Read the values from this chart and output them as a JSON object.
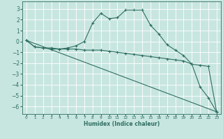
{
  "xlabel": "Humidex (Indice chaleur)",
  "bg_color": "#c8e6e0",
  "grid_color": "#ffffff",
  "line_color": "#2e6e62",
  "xlim": [
    -0.5,
    23.5
  ],
  "ylim": [
    -6.7,
    3.7
  ],
  "yticks": [
    3,
    2,
    1,
    0,
    -1,
    -2,
    -3,
    -4,
    -5,
    -6
  ],
  "xticks": [
    0,
    1,
    2,
    3,
    4,
    5,
    6,
    7,
    8,
    9,
    10,
    11,
    12,
    13,
    14,
    15,
    16,
    17,
    18,
    19,
    20,
    21,
    22,
    23
  ],
  "line1_x": [
    0,
    1,
    2,
    3,
    4,
    5,
    6,
    7,
    8,
    9,
    10,
    11,
    12,
    13,
    14,
    15,
    16,
    17,
    18,
    19,
    20,
    21,
    22,
    23
  ],
  "line1_y": [
    0.1,
    -0.5,
    -0.6,
    -0.7,
    -0.7,
    -0.6,
    -0.4,
    0.0,
    1.7,
    2.6,
    2.1,
    2.2,
    2.9,
    2.9,
    2.9,
    1.5,
    0.7,
    -0.3,
    -0.8,
    -1.3,
    -2.1,
    -4.2,
    -5.2,
    -6.5
  ],
  "line2_x": [
    0,
    1,
    2,
    3,
    4,
    5,
    6,
    7,
    8,
    9,
    10,
    11,
    12,
    13,
    14,
    15,
    16,
    17,
    18,
    19,
    20,
    21,
    22,
    23
  ],
  "line2_y": [
    0.1,
    -0.5,
    -0.6,
    -0.6,
    -0.7,
    -0.7,
    -0.7,
    -0.8,
    -0.8,
    -0.8,
    -0.9,
    -1.0,
    -1.1,
    -1.2,
    -1.3,
    -1.4,
    -1.5,
    -1.6,
    -1.7,
    -1.8,
    -2.1,
    -2.2,
    -2.3,
    -6.5
  ],
  "line3_x": [
    0,
    23
  ],
  "line3_y": [
    0.1,
    -6.5
  ]
}
